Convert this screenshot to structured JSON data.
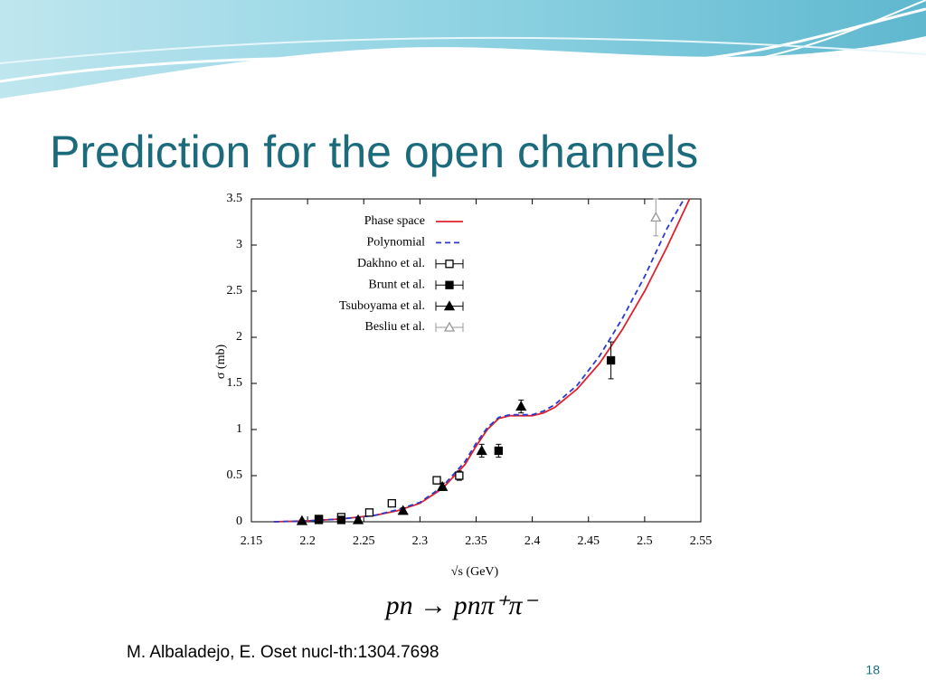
{
  "title": "Prediction for the open channels",
  "formula": "pn → pnπ⁺π⁻",
  "citation": "M. Albaladejo, E. Oset nucl-th:1304.7698",
  "page_number": "18",
  "chart_data": {
    "type": "line",
    "xlabel": "√s (GeV)",
    "ylabel": "σ (mb)",
    "xlim": [
      2.15,
      2.55
    ],
    "xticks": [
      2.15,
      2.2,
      2.25,
      2.3,
      2.35,
      2.4,
      2.45,
      2.5,
      2.55
    ],
    "ylim": [
      0,
      3.5
    ],
    "yticks": [
      0,
      0.5,
      1,
      1.5,
      2,
      2.5,
      3,
      3.5
    ],
    "legend": "upper-left",
    "series": [
      {
        "name": "Phase space",
        "color": "#e0202a",
        "style": "solid",
        "x": [
          2.17,
          2.2,
          2.23,
          2.26,
          2.28,
          2.3,
          2.32,
          2.34,
          2.35,
          2.36,
          2.37,
          2.38,
          2.39,
          2.4,
          2.41,
          2.42,
          2.44,
          2.46,
          2.48,
          2.5,
          2.52,
          2.54
        ],
        "values": [
          0,
          0.01,
          0.03,
          0.07,
          0.12,
          0.2,
          0.36,
          0.62,
          0.82,
          1.0,
          1.12,
          1.15,
          1.15,
          1.15,
          1.18,
          1.24,
          1.44,
          1.72,
          2.08,
          2.5,
          2.98,
          3.5
        ]
      },
      {
        "name": "Polynomial",
        "color": "#2a3ad0",
        "style": "dashed",
        "x": [
          2.17,
          2.2,
          2.23,
          2.26,
          2.28,
          2.3,
          2.32,
          2.34,
          2.35,
          2.36,
          2.37,
          2.38,
          2.39,
          2.4,
          2.41,
          2.42,
          2.44,
          2.46,
          2.48,
          2.5,
          2.52,
          2.535
        ],
        "values": [
          0,
          0.01,
          0.03,
          0.07,
          0.13,
          0.21,
          0.38,
          0.65,
          0.85,
          1.02,
          1.13,
          1.16,
          1.16,
          1.16,
          1.2,
          1.27,
          1.48,
          1.8,
          2.2,
          2.66,
          3.18,
          3.5
        ]
      },
      {
        "name": "Dakhno et al.",
        "color": "#000000",
        "marker": "open-square",
        "x": [
          2.21,
          2.23,
          2.255,
          2.275,
          2.315,
          2.335
        ],
        "values": [
          0.03,
          0.05,
          0.1,
          0.2,
          0.45,
          0.5
        ],
        "errors": [
          0.02,
          0.02,
          0.03,
          0.03,
          0.04,
          0.05
        ]
      },
      {
        "name": "Brunt et al.",
        "color": "#000000",
        "marker": "filled-square",
        "x": [
          2.21,
          2.23,
          2.37,
          2.47
        ],
        "values": [
          0.02,
          0.02,
          0.77,
          1.75
        ],
        "errors": [
          0.02,
          0.02,
          0.07,
          0.2
        ]
      },
      {
        "name": "Tsuboyama et al.",
        "color": "#000000",
        "marker": "filled-triangle",
        "x": [
          2.195,
          2.245,
          2.285,
          2.32,
          2.355,
          2.39
        ],
        "values": [
          0.01,
          0.02,
          0.12,
          0.38,
          0.77,
          1.25
        ],
        "errors": [
          0.01,
          0.02,
          0.03,
          0.04,
          0.07,
          0.07
        ]
      },
      {
        "name": "Besliu et al.",
        "color": "#999999",
        "marker": "open-triangle",
        "x": [
          2.51
        ],
        "values": [
          3.3
        ],
        "errors": [
          0.2
        ]
      }
    ]
  }
}
